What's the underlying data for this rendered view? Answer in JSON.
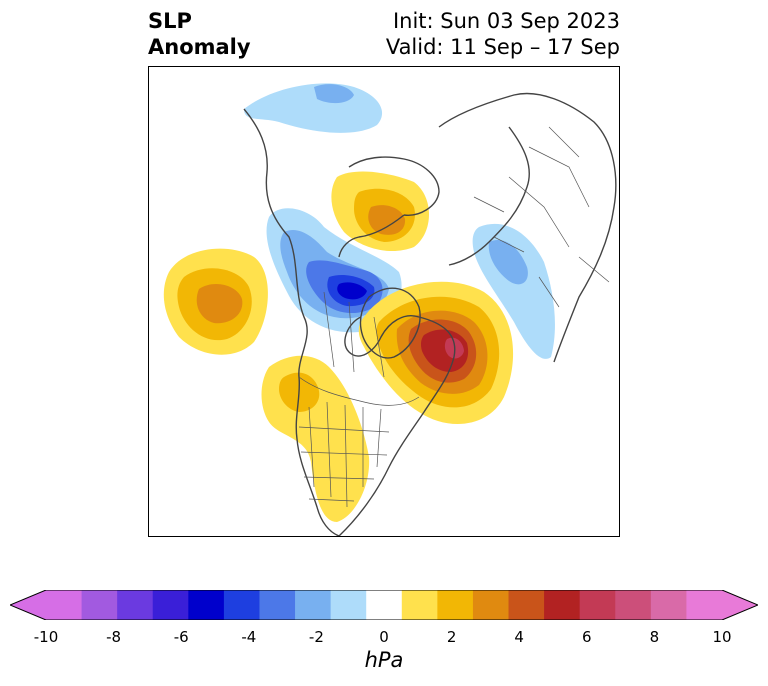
{
  "title": {
    "left_line1": "SLP",
    "left_line2": "Anomaly",
    "init": "Init: Sun 03 Sep 2023",
    "valid": "Valid: 11 Sep – 17 Sep"
  },
  "colorbar": {
    "unit_label": "hPa",
    "ticks": [
      "-10",
      "-8",
      "-6",
      "-4",
      "-2",
      "0",
      "2",
      "4",
      "6",
      "8",
      "10"
    ],
    "colors": [
      "#d66ee6",
      "#a25ae0",
      "#6b3ae0",
      "#3a1fd8",
      "#0000cc",
      "#1e3fe0",
      "#4c78e8",
      "#78b0f0",
      "#aedcfa",
      "#ffffff",
      "#ffe14d",
      "#f2b705",
      "#e08a10",
      "#c9541a",
      "#b22222",
      "#c33a55",
      "#cc4f7a",
      "#d96aa8",
      "#e87ad8"
    ]
  },
  "anomaly_levels": {
    "neg": [
      "#aedcfa",
      "#78b0f0",
      "#4c78e8",
      "#1e3fe0",
      "#0000cc"
    ],
    "pos": [
      "#ffe14d",
      "#f2b705",
      "#e08a10",
      "#c9541a",
      "#b22222",
      "#c33a55"
    ]
  }
}
